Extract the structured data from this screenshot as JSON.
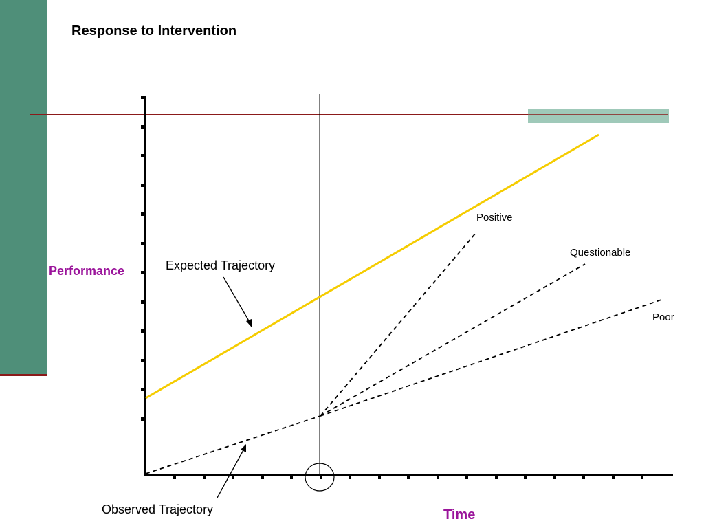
{
  "slide": {
    "title": "Response to Intervention"
  },
  "diagram": {
    "y_axis_label": "Performance",
    "x_axis_label": "Time",
    "expected_label": "Expected Trajectory",
    "observed_label": "Observed Trajectory",
    "outcomes": [
      {
        "key": "positive",
        "label": "Positive"
      },
      {
        "key": "questionable",
        "label": "Questionable"
      },
      {
        "key": "poor",
        "label": "Poor"
      }
    ],
    "colors": {
      "sidebar": "#4f8f79",
      "accent_line": "#8b1a1a",
      "goal_band": "#9fc9b9",
      "expected_line": "#f5cc00",
      "label_purple": "#9b159b"
    }
  }
}
